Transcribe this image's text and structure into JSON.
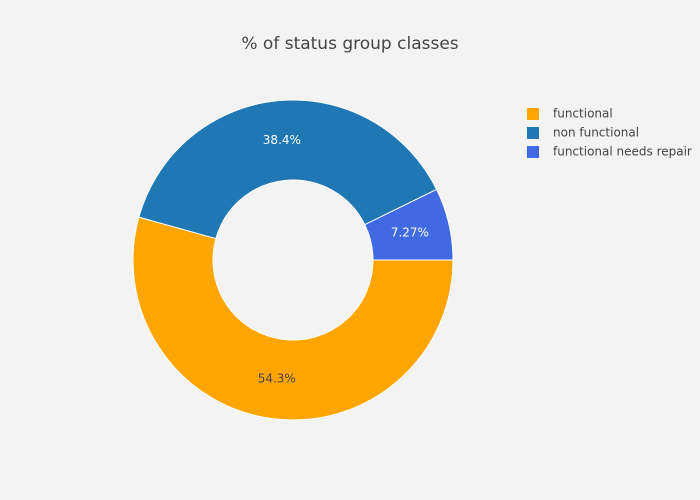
{
  "chart_data": {
    "type": "pie",
    "title": "% of status group classes",
    "categories": [
      "functional",
      "non functional",
      "functional needs repair"
    ],
    "values": [
      54.3,
      38.4,
      7.27
    ],
    "value_labels": [
      "54.3%",
      "38.4%",
      "7.27%"
    ],
    "colors": [
      "#ffa500",
      "#1f77b4",
      "#4169e1"
    ],
    "hole": 0.5,
    "legend": "top-right"
  }
}
